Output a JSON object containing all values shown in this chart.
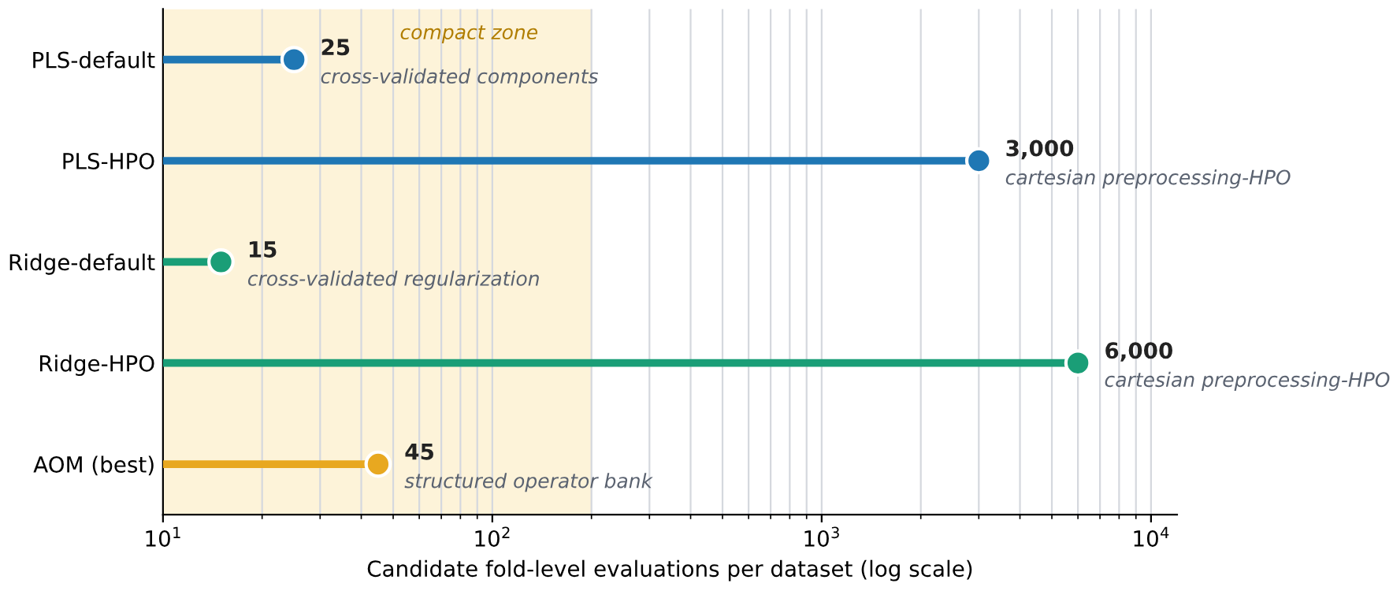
{
  "chart_data": {
    "type": "lollipop",
    "orientation": "horizontal",
    "log": "x",
    "xlabel": "Candidate fold-level evaluations per dataset (log scale)",
    "categories": [
      "PLS-default",
      "PLS-HPO",
      "Ridge-default",
      "Ridge-HPO",
      "AOM (best)"
    ],
    "values": [
      25,
      3000,
      15,
      6000,
      45
    ],
    "colors": [
      "#1f77b4",
      "#1f77b4",
      "#1a9e77",
      "#1a9e77",
      "#e8a820"
    ],
    "value_labels": [
      "25",
      "3,000",
      "15",
      "6,000",
      "45"
    ],
    "marker": "circle",
    "xlim": [
      10,
      12000
    ],
    "xticks": [
      {
        "value": 10,
        "label": "10$^{1}$"
      },
      {
        "value": 100,
        "label": "10$^{2}$"
      },
      {
        "value": 1000,
        "label": "10$^{3}$"
      },
      {
        "value": 10000,
        "label": "10$^{4}$"
      }
    ],
    "grid": "x",
    "bands": [
      {
        "axis": "x",
        "from": 10,
        "to": 200,
        "label": "compact zone",
        "color": "#fdf3d9"
      }
    ],
    "annotations": [
      {
        "text": "cross-validated components",
        "x": 25,
        "y": "PLS-default"
      },
      {
        "text": "cartesian preprocessing-HPO",
        "x": 3000,
        "y": "PLS-HPO"
      },
      {
        "text": "cross-validated regularization",
        "x": 15,
        "y": "Ridge-default"
      },
      {
        "text": "cartesian preprocessing-HPO",
        "x": 6000,
        "y": "Ridge-HPO"
      },
      {
        "text": "structured operator bank",
        "x": 45,
        "y": "AOM (best)"
      }
    ]
  }
}
